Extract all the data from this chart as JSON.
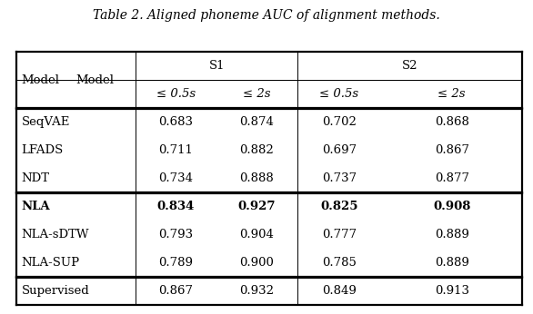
{
  "title": "Table 2. Aligned phoneme AUC of alignment methods.",
  "col_groups": [
    {
      "label": "S1",
      "sub_cols": [
        "≤ 0.5s",
        "≤ 2s"
      ]
    },
    {
      "label": "S2",
      "sub_cols": [
        "≤ 0.5s",
        "≤ 2s"
      ]
    }
  ],
  "row_label": "Model",
  "rows": [
    {
      "model": "SeqVAE",
      "bold": false,
      "values": [
        "0.683",
        "0.874",
        "0.702",
        "0.868"
      ]
    },
    {
      "model": "LFADS",
      "bold": false,
      "values": [
        "0.711",
        "0.882",
        "0.697",
        "0.867"
      ]
    },
    {
      "model": "NDT",
      "bold": false,
      "values": [
        "0.734",
        "0.888",
        "0.737",
        "0.877"
      ]
    },
    {
      "model": "NLA",
      "bold": true,
      "values": [
        "0.834",
        "0.927",
        "0.825",
        "0.908"
      ]
    },
    {
      "model": "NLA-sDTW",
      "bold": false,
      "values": [
        "0.793",
        "0.904",
        "0.777",
        "0.889"
      ]
    },
    {
      "model": "NLA-SUP",
      "bold": false,
      "values": [
        "0.789",
        "0.900",
        "0.785",
        "0.889"
      ]
    },
    {
      "model": "Supervised",
      "bold": false,
      "values": [
        "0.867",
        "0.932",
        "0.849",
        "0.913"
      ]
    }
  ],
  "group_separator_after": [
    2,
    5
  ],
  "background_color": "#ffffff",
  "text_color": "#000000",
  "fontsize": 9.5
}
